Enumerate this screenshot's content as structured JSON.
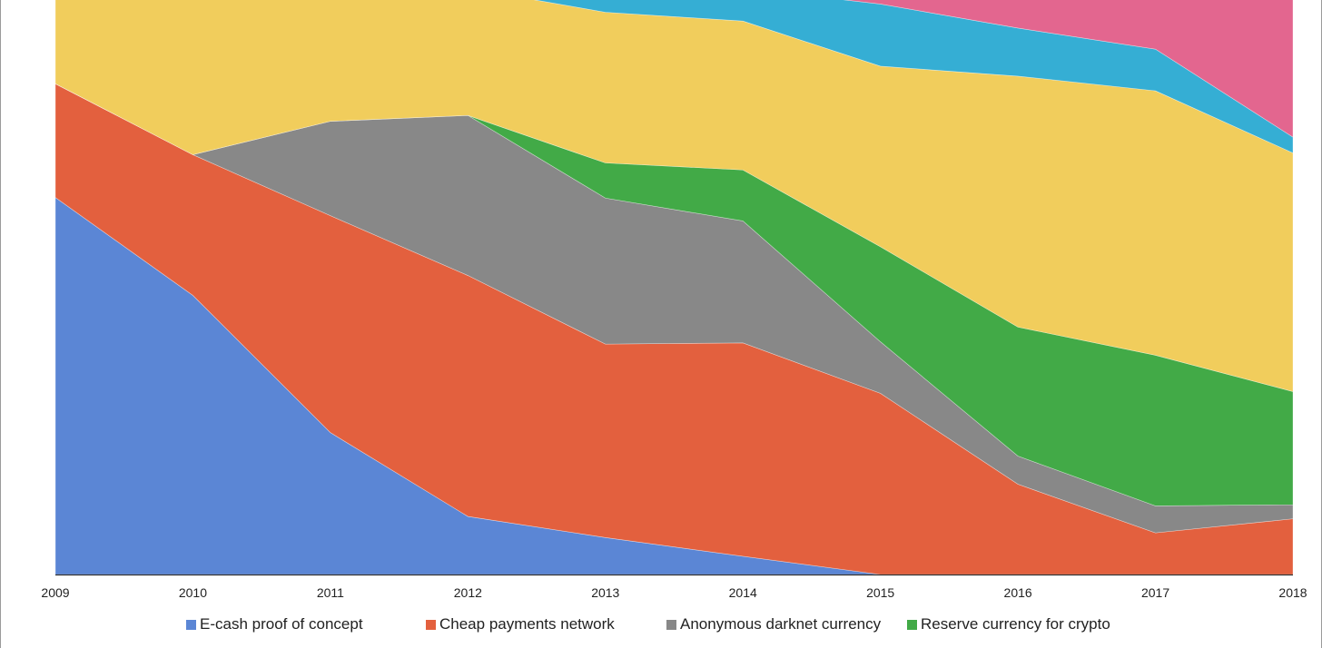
{
  "chart_data": {
    "type": "area",
    "stacked": true,
    "normalized": true,
    "x": [
      "2009",
      "2010",
      "2011",
      "2012",
      "2013",
      "2014",
      "2015",
      "2016",
      "2017",
      "2018"
    ],
    "ylim": [
      0,
      1
    ],
    "grid": false,
    "legend_position": "bottom",
    "series": [
      {
        "name": "E-cash proof of concept",
        "color": "#5b86d5",
        "values": [
          0.643,
          0.476,
          0.242,
          0.099,
          0.063,
          0.031,
          0.0,
          0.0,
          0.0,
          0.0
        ]
      },
      {
        "name": "Cheap payments network",
        "color": "#e3603e",
        "values": [
          0.194,
          0.24,
          0.37,
          0.411,
          0.33,
          0.364,
          0.309,
          0.154,
          0.071,
          0.095
        ]
      },
      {
        "name": "Anonymous darknet currency",
        "color": "#888888",
        "values": [
          0.0,
          0.0,
          0.161,
          0.273,
          0.249,
          0.208,
          0.088,
          0.048,
          0.046,
          0.024
        ]
      },
      {
        "name": "Reserve currency for crypto",
        "color": "#42aa47",
        "values": [
          0.0,
          0.0,
          0.0,
          0.0,
          0.06,
          0.087,
          0.162,
          0.22,
          0.257,
          0.193
        ]
      },
      {
        "name": "",
        "color": "#f1cd5c",
        "values": [
          0.163,
          0.284,
          0.227,
          0.217,
          0.257,
          0.254,
          0.308,
          0.428,
          0.451,
          0.407
        ]
      },
      {
        "name": "",
        "color": "#35aed4",
        "values": [
          0.0,
          0.0,
          0.0,
          0.0,
          0.041,
          0.056,
          0.106,
          0.082,
          0.071,
          0.027
        ]
      },
      {
        "name": "",
        "color": "#e3668f",
        "values": [
          0.0,
          0.0,
          0.0,
          0.0,
          0.0,
          0.0,
          0.027,
          0.068,
          0.104,
          0.254
        ]
      }
    ]
  }
}
